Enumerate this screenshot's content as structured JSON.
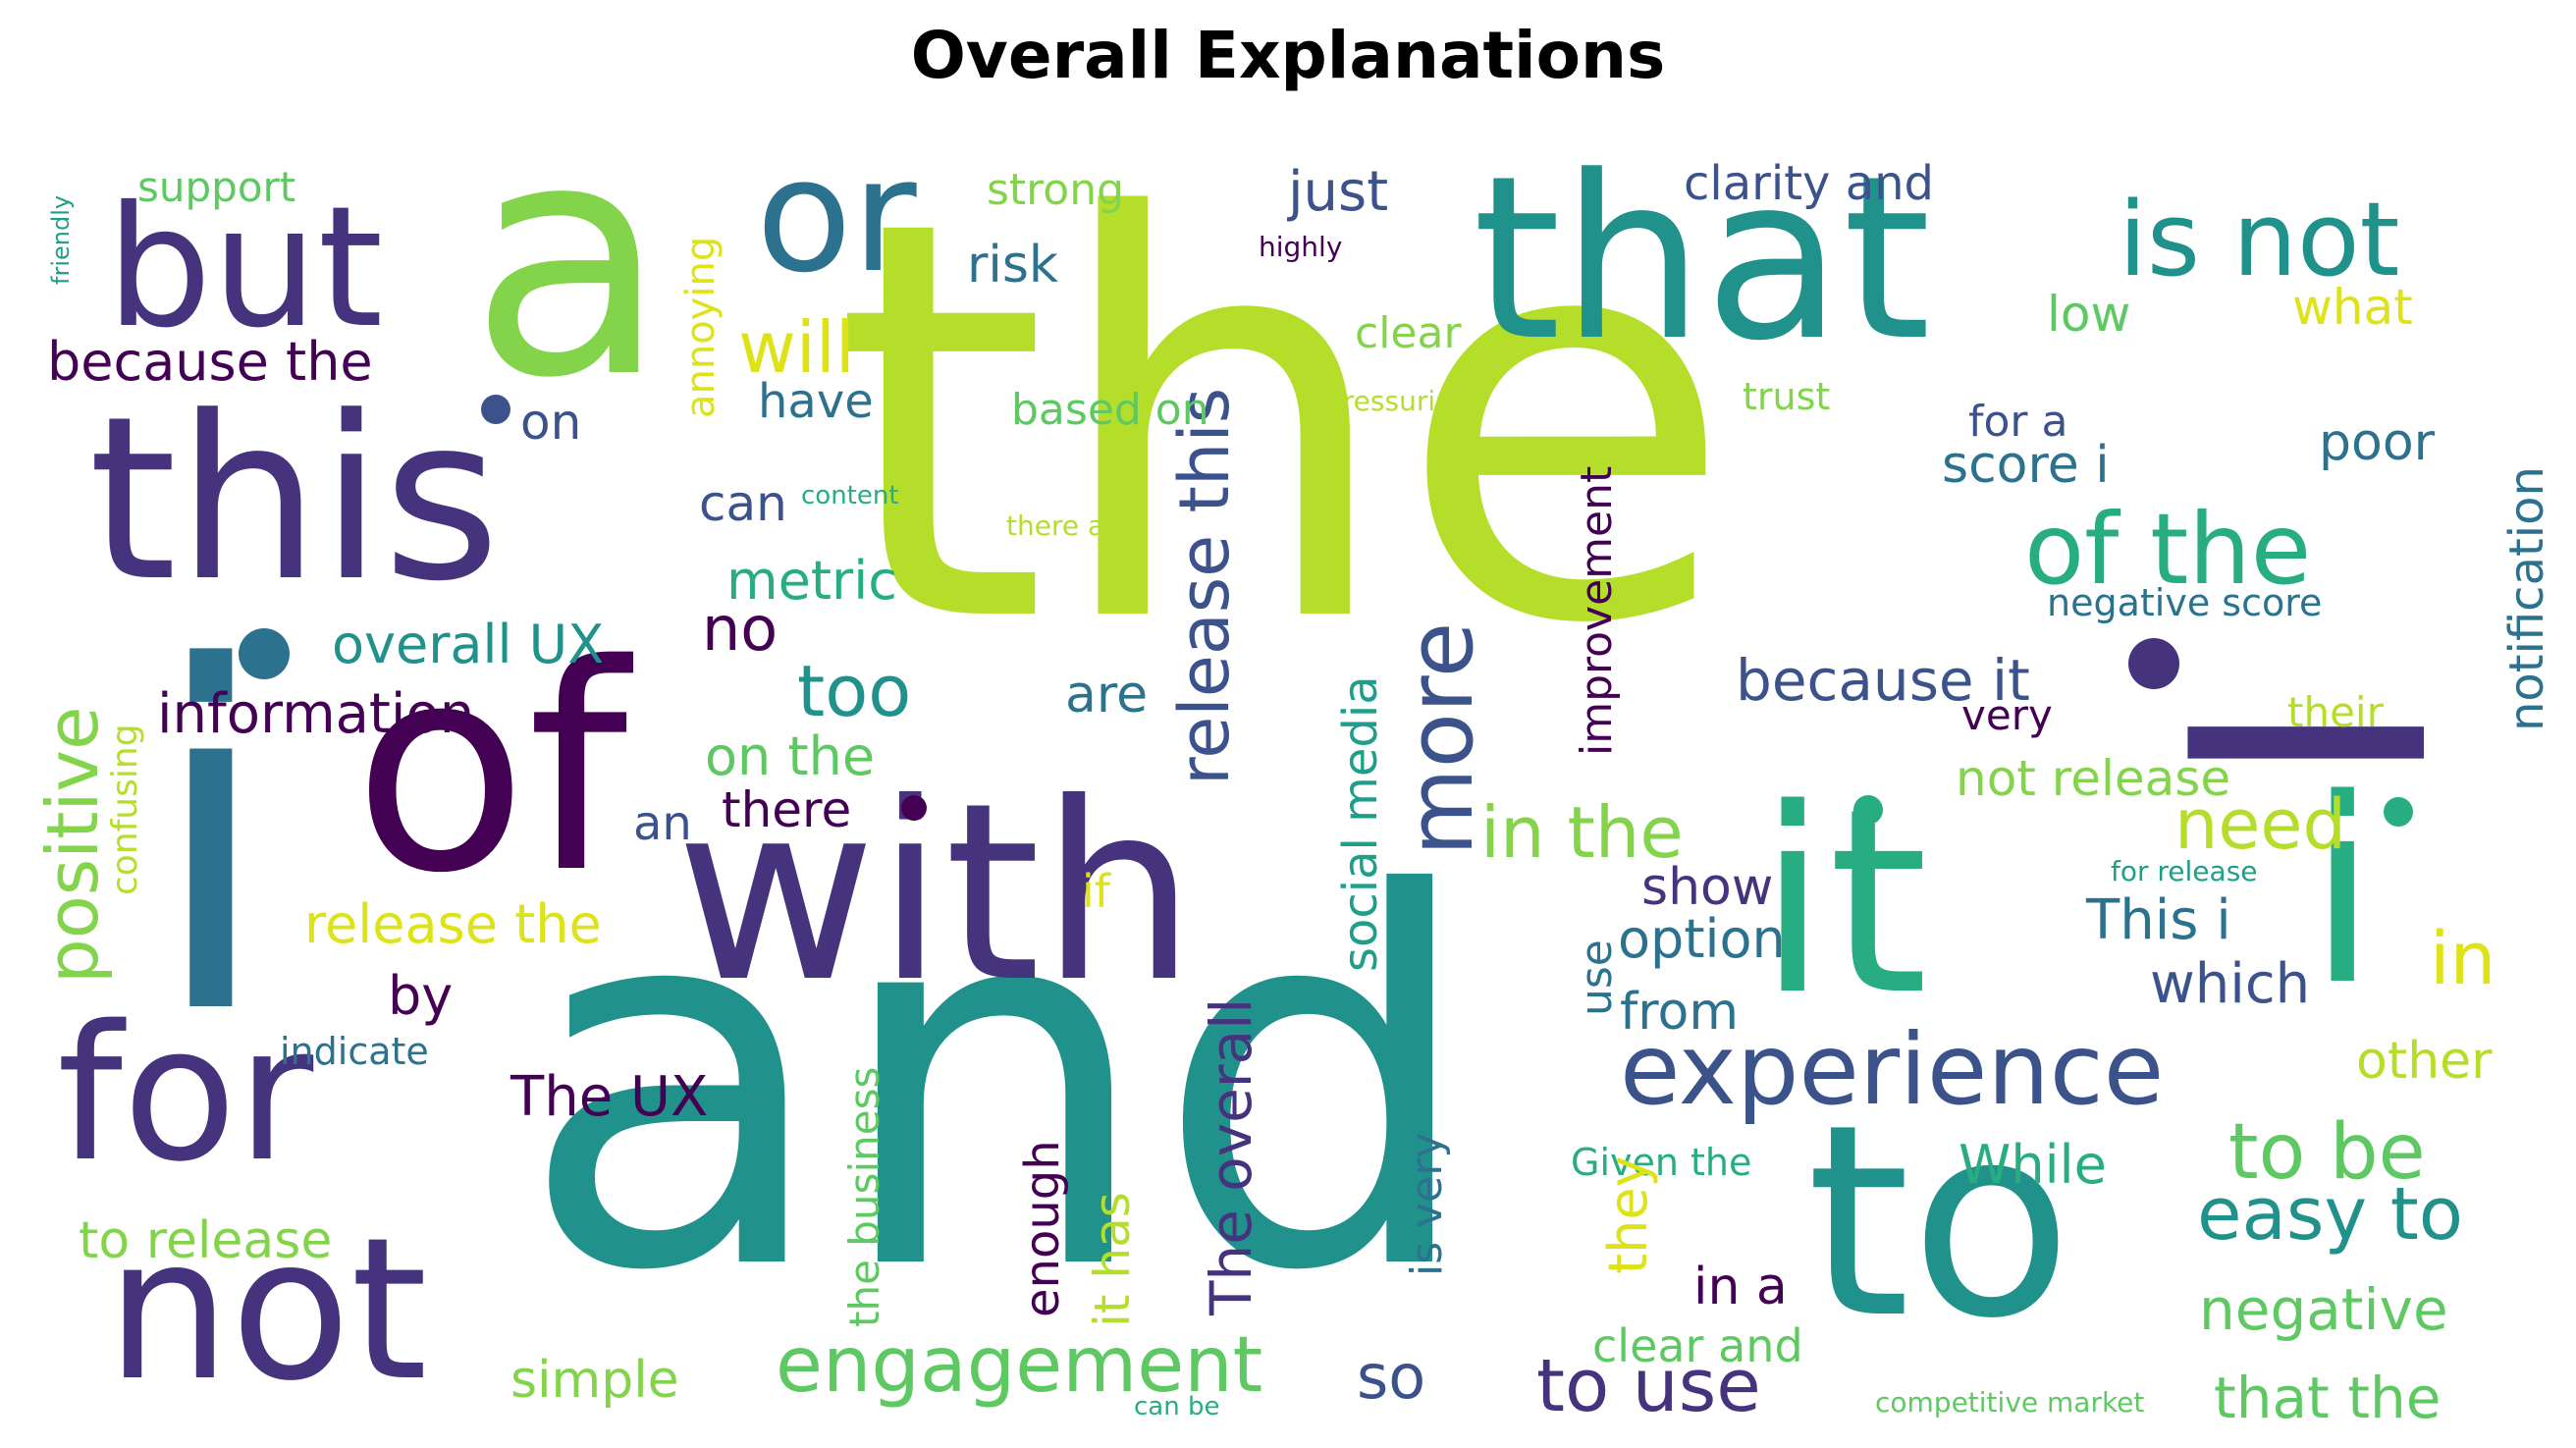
{
  "title": "Overall Explanations",
  "words": {
    "the": "the",
    "and": "and",
    "i": "i",
    "of": "of",
    "with": "with",
    "that": "that",
    "a": "a",
    "this": "this",
    "but": "but",
    "or": "or",
    "to": "to",
    "for": "for",
    "not": "not",
    "it": "it",
    "i_right": "i",
    "I_big": "I",
    "is_not": "is not",
    "of_the": "of the",
    "experience": "experience",
    "engagement": "engagement",
    "more": "more",
    "release_this": "release this",
    "positive": "positive",
    "in_the": "in the",
    "need": "need",
    "to_be": "to be",
    "easy_to": "easy to",
    "to_use": "to use",
    "too": "too",
    "will": "will",
    "because_the": "because the",
    "because_it": "because it",
    "information": "information",
    "overall_ux": "overall UX",
    "social_media": "social media",
    "improvement": "improvement",
    "The_overall": "The overall",
    "The_UX": "The UX",
    "release_the": "release the",
    "notification": "notification",
    "negative": "negative",
    "that_the": "that the",
    "so": "so",
    "in": "in",
    "just": "just",
    "clarity_and": "clarity and",
    "support": "support",
    "strong": "strong",
    "risk": "risk",
    "highly": "highly",
    "friendly": "friendly",
    "annoying": "annoying",
    "clear": "clear",
    "low": "low",
    "what": "what",
    "have": "have",
    "based_on": "based on",
    "pressuring": "pressuring",
    "trust": "trust",
    "for_a": "for a",
    "on": "on",
    "poor": "poor",
    "can": "can",
    "content": "content",
    "there_are": "there are",
    "score_i": "score i",
    "metric": "metric",
    "negative_score": "negative score",
    "no": "no",
    "are": "are",
    "very": "very",
    "their": "their",
    "confusing": "confusing",
    "on_the": "on the",
    "not_release": "not release",
    "there": "there",
    "an": "an",
    "show": "show",
    "for_release": "for release",
    "if": "if",
    "This_i": "This i",
    "option": "option",
    "which": "which",
    "by": "by",
    "use": "use",
    "from": "from",
    "indicate": "indicate",
    "other": "other",
    "the_business": "the business",
    "enough": "enough",
    "it_has": "it has",
    "is_very": "is very",
    "Given_the": "Given the",
    "While": "While",
    "to_release": "to release",
    "they": "they",
    "in_a": "in a",
    "simple": "simple",
    "clear_and": "clear and",
    "can_be": "can be",
    "competitive_market": "competitive market"
  },
  "colors": {
    "lime": "#b5de2b",
    "teal": "#21918c",
    "indigo": "#46337e",
    "deep_purple": "#440154",
    "navy_blue": "#3b528b",
    "blue": "#2c728e",
    "sea_green": "#27ad81",
    "green": "#5ec962",
    "light_green": "#84d44b",
    "yellow": "#dde318",
    "mid_teal": "#1f9e89"
  }
}
